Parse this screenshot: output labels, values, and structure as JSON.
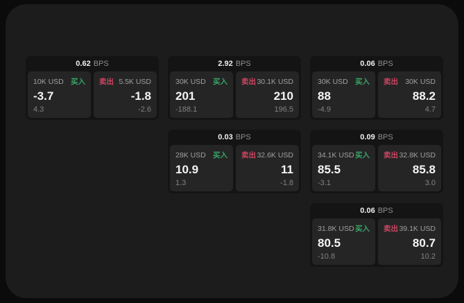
{
  "labels": {
    "buy": "买入",
    "sell": "卖出",
    "bps": "BPS"
  },
  "colors": {
    "background": "#0b0b0b",
    "window": "#1c1c1c",
    "card": "#141414",
    "panel": "#252525",
    "buy_green": "#37a566",
    "sell_red": "#cd4560",
    "value_white": "#f5f5f5",
    "muted_gray": "#8f8f8f"
  },
  "cards": [
    {
      "bps": "0.62",
      "buy": {
        "size": "10K USD",
        "value": "-3.7",
        "delta": "4.3"
      },
      "sell": {
        "size": "5.5K USD",
        "value": "-1.8",
        "delta": "-2.6"
      }
    },
    {
      "bps": "2.92",
      "buy": {
        "size": "30K USD",
        "value": "201",
        "delta": "-188.1"
      },
      "sell": {
        "size": "30.1K USD",
        "value": "210",
        "delta": "196.5"
      }
    },
    {
      "bps": "0.06",
      "buy": {
        "size": "30K USD",
        "value": "88",
        "delta": "-4.9"
      },
      "sell": {
        "size": "30K USD",
        "value": "88.2",
        "delta": "4.7"
      }
    },
    {
      "bps": "0.03",
      "buy": {
        "size": "28K USD",
        "value": "10.9",
        "delta": "1.3"
      },
      "sell": {
        "size": "32.6K USD",
        "value": "11",
        "delta": "-1.8"
      }
    },
    {
      "bps": "0.09",
      "buy": {
        "size": "34.1K USD",
        "value": "85.5",
        "delta": "-3.1"
      },
      "sell": {
        "size": "32.8K USD",
        "value": "85.8",
        "delta": "3.0"
      }
    },
    {
      "bps": "0.06",
      "buy": {
        "size": "31.8K USD",
        "value": "80.5",
        "delta": "-10.8"
      },
      "sell": {
        "size": "39.1K USD",
        "value": "80.7",
        "delta": "10.2"
      }
    }
  ]
}
